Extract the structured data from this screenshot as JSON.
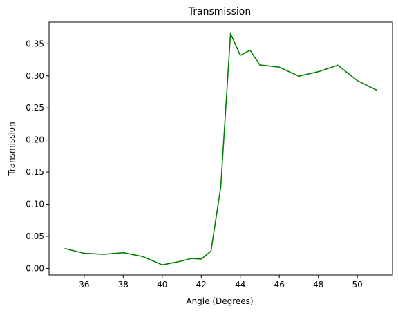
{
  "chart_data": {
    "type": "line",
    "title": "Transmission",
    "xlabel": "Angle (Degrees)",
    "ylabel": "Transmission",
    "xlim": [
      34.2,
      51.8
    ],
    "ylim": [
      -0.0103,
      0.3837
    ],
    "grid": false,
    "legend": "none",
    "x_ticks": [
      36,
      38,
      40,
      42,
      44,
      46,
      48,
      50
    ],
    "x_tick_labels": [
      "36",
      "38",
      "40",
      "42",
      "44",
      "46",
      "48",
      "50"
    ],
    "y_ticks": [
      0.0,
      0.05,
      0.1,
      0.15,
      0.2,
      0.25,
      0.3,
      0.35
    ],
    "y_tick_labels": [
      "0.00",
      "0.05",
      "0.10",
      "0.15",
      "0.20",
      "0.25",
      "0.30",
      "0.35"
    ],
    "series": [
      {
        "color": "#008000",
        "x": [
          35,
          36,
          37,
          38,
          39,
          40,
          40.5,
          41,
          41.5,
          42,
          42.5,
          43,
          43.5,
          44,
          44.5,
          45,
          46,
          47,
          48,
          49,
          50,
          51
        ],
        "y": [
          0.031,
          0.0235,
          0.022,
          0.0245,
          0.0185,
          0.0055,
          0.0085,
          0.0115,
          0.0155,
          0.0145,
          0.027,
          0.127,
          0.366,
          0.332,
          0.34,
          0.317,
          0.3135,
          0.2995,
          0.3065,
          0.3165,
          0.2925,
          0.2775
        ]
      }
    ]
  }
}
